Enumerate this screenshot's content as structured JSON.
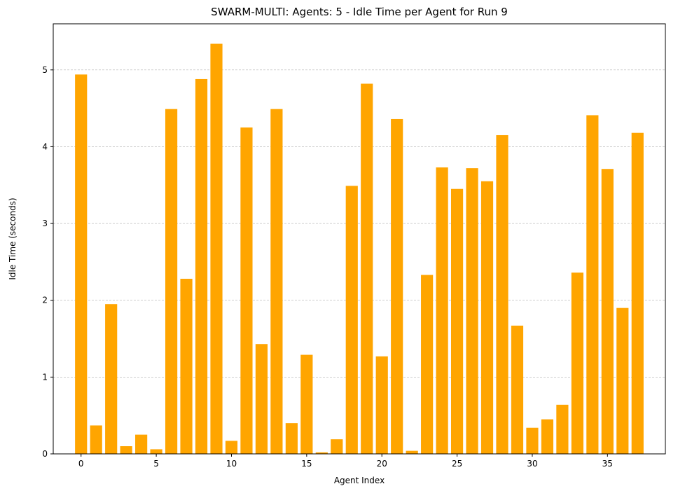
{
  "chart_data": {
    "type": "bar",
    "title": "SWARM-MULTI: Agents: 5 - Idle Time per Agent for Run 9",
    "xlabel": "Agent Index",
    "ylabel": "Idle Time (seconds)",
    "x": [
      0,
      1,
      2,
      3,
      4,
      5,
      6,
      7,
      8,
      9,
      10,
      11,
      12,
      13,
      14,
      15,
      16,
      17,
      18,
      19,
      20,
      21,
      22,
      23,
      24,
      25,
      26,
      27,
      28,
      29,
      30,
      31,
      32,
      33,
      34,
      35,
      36,
      37
    ],
    "values": [
      4.94,
      0.37,
      1.95,
      0.1,
      0.25,
      0.06,
      4.49,
      2.28,
      4.88,
      5.34,
      0.17,
      4.25,
      1.43,
      4.49,
      0.4,
      1.29,
      0.02,
      0.19,
      3.49,
      4.82,
      1.27,
      4.36,
      0.04,
      2.33,
      3.73,
      3.45,
      3.72,
      3.55,
      4.15,
      1.67,
      0.34,
      0.45,
      0.64,
      2.36,
      4.41,
      3.71,
      1.9,
      4.18
    ],
    "xlim": [
      -1.85,
      38.85
    ],
    "ylim": [
      0,
      5.6
    ],
    "xticks": [
      0,
      5,
      10,
      15,
      20,
      25,
      30,
      35
    ],
    "xtick_labels": [
      "0",
      "5",
      "10",
      "15",
      "20",
      "25",
      "30",
      "35"
    ],
    "yticks": [
      0,
      1,
      2,
      3,
      4,
      5
    ],
    "ytick_labels": [
      "0",
      "1",
      "2",
      "3",
      "4",
      "5"
    ],
    "grid": "y-dashed",
    "bar_color": "#FFA500",
    "grid_color": "#b0b0b0"
  }
}
